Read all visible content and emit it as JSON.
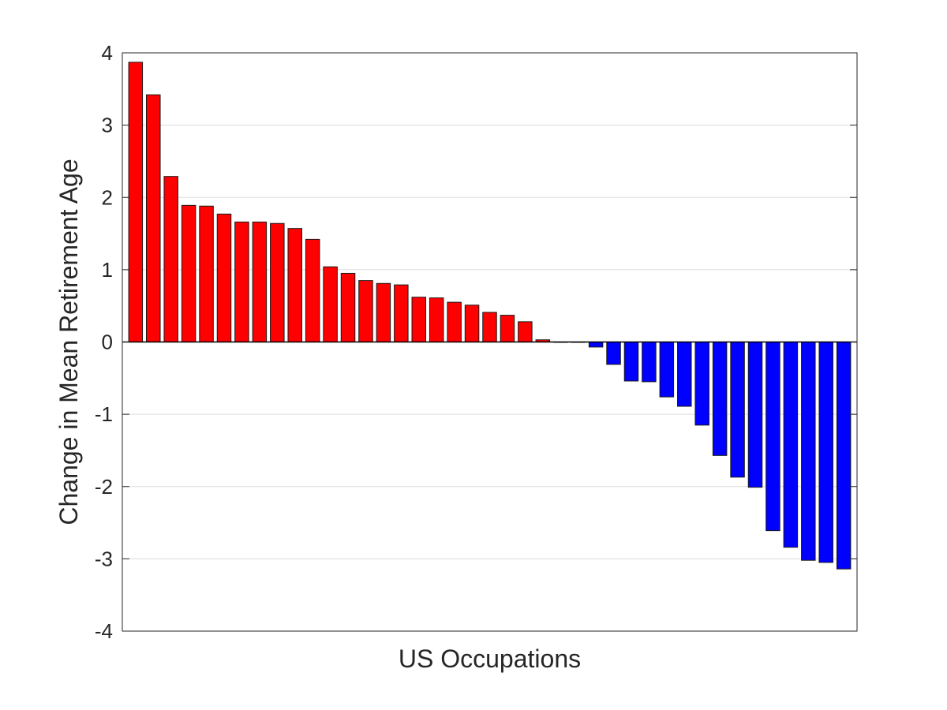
{
  "chart_data": {
    "type": "bar",
    "xlabel": "US Occupations",
    "ylabel": "Change in Mean Retirement Age",
    "ylim": [
      -4,
      4
    ],
    "yticks": [
      4,
      3,
      2,
      1,
      0,
      -1,
      -2,
      -3,
      -4
    ],
    "ytick_labels": [
      "4",
      "3",
      "2",
      "1",
      "0",
      "-1",
      "-2",
      "-3",
      "-4"
    ],
    "grid": "horizontal",
    "legend": "none",
    "colors": {
      "positive": "#ff0000",
      "negative": "#0000ff"
    },
    "values": [
      3.87,
      3.42,
      2.29,
      1.89,
      1.88,
      1.77,
      1.66,
      1.66,
      1.64,
      1.57,
      1.42,
      1.04,
      0.95,
      0.85,
      0.81,
      0.79,
      0.62,
      0.61,
      0.55,
      0.51,
      0.41,
      0.37,
      0.28,
      0.03,
      0.0,
      0.0,
      -0.07,
      -0.31,
      -0.54,
      -0.55,
      -0.76,
      -0.89,
      -1.15,
      -1.57,
      -1.87,
      -2.01,
      -2.61,
      -2.84,
      -3.02,
      -3.05,
      -3.14
    ]
  }
}
